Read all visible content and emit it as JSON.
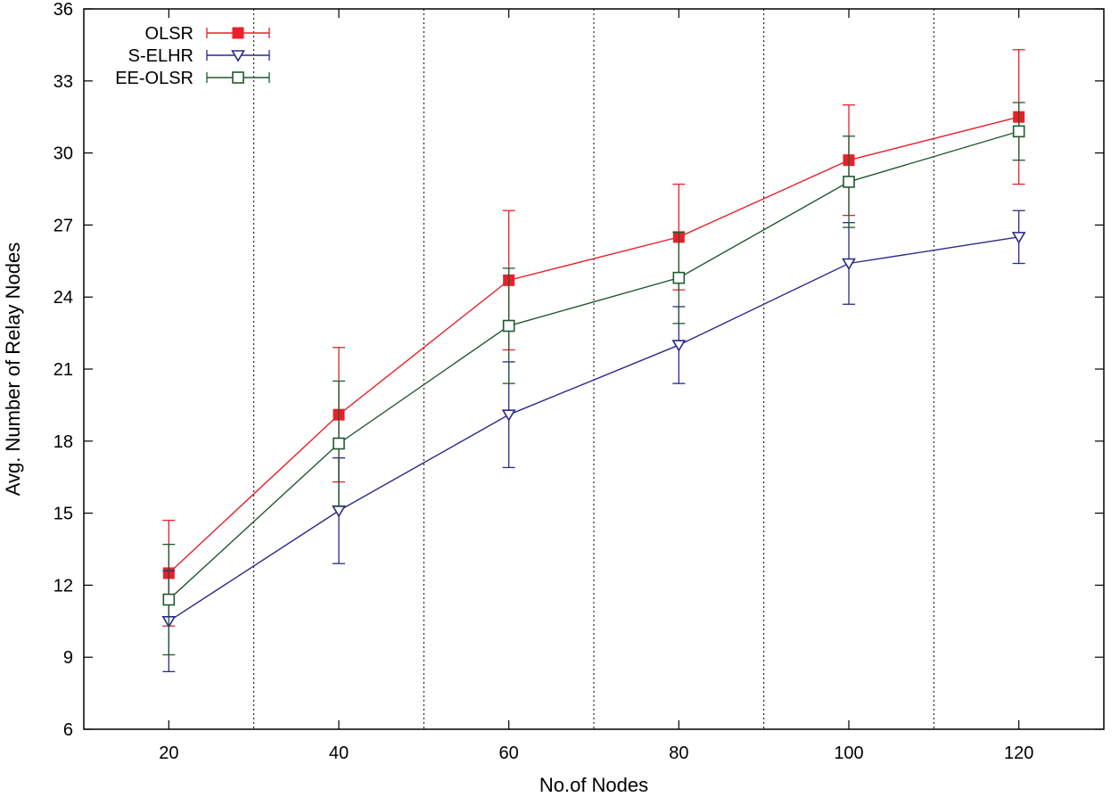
{
  "chart_data": {
    "type": "line",
    "title": "",
    "xlabel": "No.of Nodes",
    "ylabel": "Avg. Number of Relay Nodes",
    "xlim": [
      10,
      130
    ],
    "ylim": [
      6,
      36
    ],
    "x_ticks": [
      20,
      40,
      60,
      80,
      100,
      120
    ],
    "y_ticks": [
      6,
      9,
      12,
      15,
      18,
      21,
      24,
      27,
      30,
      33,
      36
    ],
    "vertical_grid_at": [
      30,
      50,
      70,
      90,
      110
    ],
    "x": [
      20,
      40,
      60,
      80,
      100,
      120
    ],
    "legend_position": "top-left",
    "series": [
      {
        "name": "OLSR",
        "color": "#e8202a",
        "marker": "filled-square",
        "values": [
          12.5,
          19.1,
          24.7,
          26.5,
          29.7,
          31.5
        ],
        "err_low": [
          10.3,
          16.3,
          21.8,
          24.3,
          27.4,
          28.7
        ],
        "err_high": [
          14.7,
          21.9,
          27.6,
          28.7,
          32.0,
          34.3
        ]
      },
      {
        "name": "S-ELHR",
        "color": "#2a2a8c",
        "marker": "open-triangle-down",
        "values": [
          10.5,
          15.1,
          19.1,
          22.0,
          25.4,
          26.5
        ],
        "err_low": [
          8.4,
          12.9,
          16.9,
          20.4,
          23.7,
          25.4
        ],
        "err_high": [
          12.6,
          17.3,
          21.3,
          23.6,
          27.1,
          27.6
        ]
      },
      {
        "name": "EE-OLSR",
        "color": "#1f5a2e",
        "marker": "open-square",
        "values": [
          11.4,
          17.9,
          22.8,
          24.8,
          28.8,
          30.9
        ],
        "err_low": [
          9.1,
          15.3,
          20.4,
          22.9,
          26.9,
          29.7
        ],
        "err_high": [
          13.7,
          20.5,
          25.2,
          26.7,
          30.7,
          32.1
        ]
      }
    ]
  }
}
